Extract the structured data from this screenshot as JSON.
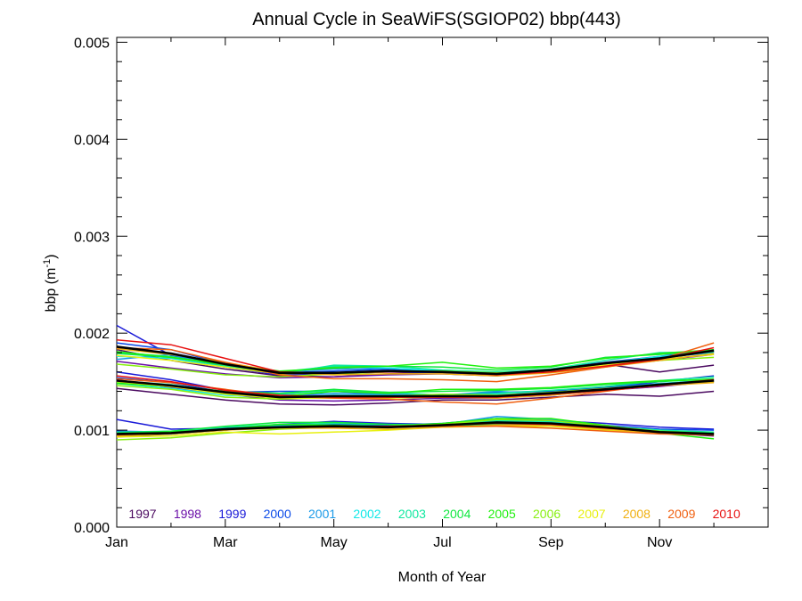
{
  "chart_data": {
    "type": "line",
    "title": "Annual Cycle in SeaWiFS(SGIOP02) bbp(443)",
    "xlabel": "Month of Year",
    "ylabel": "bbp (m",
    "ylabel_superscript": "-1",
    "ylabel_close": ")",
    "xlim": [
      1,
      13
    ],
    "ylim": [
      0.0,
      0.00505
    ],
    "xticks": [
      {
        "x": 1,
        "label": "Jan"
      },
      {
        "x": 3,
        "label": "Mar"
      },
      {
        "x": 5,
        "label": "May"
      },
      {
        "x": 7,
        "label": "Jul"
      },
      {
        "x": 9,
        "label": "Sep"
      },
      {
        "x": 11,
        "label": "Nov"
      }
    ],
    "yticks": [
      {
        "y": 0.0,
        "label": "0.000"
      },
      {
        "y": 0.001,
        "label": "0.001"
      },
      {
        "y": 0.002,
        "label": "0.002"
      },
      {
        "y": 0.003,
        "label": "0.003"
      },
      {
        "y": 0.004,
        "label": "0.004"
      },
      {
        "y": 0.005,
        "label": "0.005"
      }
    ],
    "legend_position": "bottom",
    "x": [
      1,
      2,
      3,
      4,
      5,
      6,
      7,
      8,
      9,
      10,
      11,
      12
    ],
    "series": [
      {
        "name": "1997",
        "color": "#4b0a60",
        "groups": [
          [
            0.00093,
            0.00096,
            0.001,
            0.00104,
            0.00105,
            0.00104,
            0.00106,
            0.00108,
            0.00106,
            0.00102,
            0.00097,
            0.00094
          ],
          [
            0.00143,
            0.00137,
            0.00131,
            0.00127,
            0.00126,
            0.00128,
            0.00131,
            0.00131,
            0.00134,
            0.00137,
            0.00135,
            0.0014
          ],
          [
            0.00183,
            0.00172,
            0.00163,
            0.00156,
            0.00155,
            0.00158,
            0.0016,
            0.00158,
            0.00162,
            0.00168,
            0.0016,
            0.00167
          ]
        ]
      },
      {
        "name": "1998",
        "color": "#6a0fa8",
        "groups": [
          [
            0.00095,
            0.00097,
            0.00102,
            0.00104,
            0.00105,
            0.00104,
            0.00106,
            0.00109,
            0.00108,
            0.00103,
            0.00099,
            0.00096
          ],
          [
            0.00152,
            0.00144,
            0.00137,
            0.00131,
            0.0013,
            0.00131,
            0.00133,
            0.00133,
            0.00136,
            0.00141,
            0.00145,
            0.0015
          ],
          [
            0.00171,
            0.00164,
            0.00158,
            0.00154,
            0.00155,
            0.00157,
            0.00158,
            0.00156,
            0.0016,
            0.00166,
            0.00172,
            0.00178
          ]
        ]
      },
      {
        "name": "1999",
        "color": "#1a1ad8",
        "groups": [
          [
            0.00111,
            0.00101,
            0.00102,
            0.00106,
            0.00109,
            0.00107,
            0.00106,
            0.00111,
            0.0011,
            0.00107,
            0.00103,
            0.00101
          ],
          [
            0.0016,
            0.00152,
            0.00141,
            0.00135,
            0.00136,
            0.00135,
            0.00134,
            0.00136,
            0.00139,
            0.00144,
            0.0015,
            0.00156
          ],
          [
            0.00208,
            0.00177,
            0.00165,
            0.00157,
            0.00158,
            0.0016,
            0.00159,
            0.00157,
            0.00161,
            0.00168,
            0.00174,
            0.00181
          ]
        ]
      },
      {
        "name": "2000",
        "color": "#0a4ae8",
        "groups": [
          [
            0.00099,
            0.00098,
            0.00101,
            0.00104,
            0.00106,
            0.00105,
            0.00107,
            0.00112,
            0.0011,
            0.00105,
            0.00101,
            0.001
          ],
          [
            0.00154,
            0.00149,
            0.00139,
            0.0014,
            0.0014,
            0.00137,
            0.00136,
            0.00139,
            0.0014,
            0.00145,
            0.00148,
            0.00151
          ],
          [
            0.0019,
            0.00183,
            0.00168,
            0.00159,
            0.00161,
            0.00163,
            0.00161,
            0.00158,
            0.00163,
            0.0017,
            0.00176,
            0.00183
          ]
        ]
      },
      {
        "name": "2001",
        "color": "#1a9ae8",
        "groups": [
          [
            0.00097,
            0.00098,
            0.00102,
            0.00105,
            0.00104,
            0.00104,
            0.00106,
            0.00114,
            0.00111,
            0.00104,
            0.00099,
            0.00097
          ],
          [
            0.0015,
            0.00146,
            0.00138,
            0.00136,
            0.00138,
            0.00137,
            0.00136,
            0.0014,
            0.00137,
            0.00142,
            0.00147,
            0.0015
          ],
          [
            0.00173,
            0.00178,
            0.00166,
            0.0016,
            0.00163,
            0.00164,
            0.0016,
            0.00158,
            0.00162,
            0.00169,
            0.00175,
            0.0018
          ]
        ]
      },
      {
        "name": "2002",
        "color": "#10e8e8",
        "groups": [
          [
            0.00096,
            0.00097,
            0.00101,
            0.00104,
            0.00103,
            0.00103,
            0.00105,
            0.00109,
            0.00108,
            0.00104,
            0.001,
            0.00097
          ],
          [
            0.00148,
            0.00143,
            0.00136,
            0.00134,
            0.00136,
            0.00136,
            0.00135,
            0.00137,
            0.00138,
            0.00143,
            0.00148,
            0.00152
          ],
          [
            0.00176,
            0.00174,
            0.00165,
            0.0016,
            0.00166,
            0.00164,
            0.00161,
            0.00159,
            0.00162,
            0.00169,
            0.00176,
            0.0018
          ]
        ]
      },
      {
        "name": "2003",
        "color": "#10e8a0",
        "groups": [
          [
            0.00098,
            0.00099,
            0.00103,
            0.00106,
            0.00107,
            0.00106,
            0.00106,
            0.0011,
            0.00109,
            0.00104,
            0.001,
            0.00098
          ],
          [
            0.00151,
            0.00147,
            0.00139,
            0.00137,
            0.00141,
            0.00139,
            0.00136,
            0.00138,
            0.00141,
            0.00145,
            0.00151,
            0.00155
          ],
          [
            0.0018,
            0.00176,
            0.00166,
            0.00158,
            0.00167,
            0.00166,
            0.00162,
            0.0016,
            0.00163,
            0.00172,
            0.0018,
            0.00181
          ]
        ]
      },
      {
        "name": "2004",
        "color": "#10e840",
        "groups": [
          [
            0.00097,
            0.00099,
            0.00104,
            0.00108,
            0.00108,
            0.00106,
            0.00104,
            0.00106,
            0.00106,
            0.00103,
            0.00099,
            0.00097
          ],
          [
            0.00149,
            0.00146,
            0.0014,
            0.00138,
            0.00142,
            0.00139,
            0.0014,
            0.00141,
            0.00143,
            0.00147,
            0.0015,
            0.00153
          ],
          [
            0.00179,
            0.00175,
            0.00167,
            0.0016,
            0.00165,
            0.00166,
            0.00165,
            0.00162,
            0.00165,
            0.00175,
            0.00178,
            0.00182
          ]
        ]
      },
      {
        "name": "2005",
        "color": "#20f010",
        "groups": [
          [
            0.00096,
            0.00098,
            0.00101,
            0.00106,
            0.00105,
            0.00104,
            0.00107,
            0.00112,
            0.00112,
            0.00105,
            0.00097,
            0.00091
          ],
          [
            0.00148,
            0.00145,
            0.00138,
            0.00135,
            0.0014,
            0.00138,
            0.00142,
            0.00142,
            0.00144,
            0.00148,
            0.00151,
            0.00152
          ],
          [
            0.00181,
            0.00175,
            0.00168,
            0.00161,
            0.00164,
            0.00166,
            0.0017,
            0.00164,
            0.00166,
            0.00174,
            0.00179,
            0.00183
          ]
        ]
      },
      {
        "name": "2006",
        "color": "#88f010",
        "groups": [
          [
            0.0009,
            0.00092,
            0.00097,
            0.00101,
            0.00103,
            0.00104,
            0.00106,
            0.00111,
            0.0011,
            0.00104,
            0.00099,
            0.00096
          ],
          [
            0.00146,
            0.00142,
            0.00134,
            0.00132,
            0.00134,
            0.00135,
            0.00137,
            0.00136,
            0.00139,
            0.00143,
            0.00147,
            0.0015
          ],
          [
            0.00168,
            0.00163,
            0.00157,
            0.00155,
            0.00158,
            0.0016,
            0.00161,
            0.00159,
            0.00161,
            0.00167,
            0.00172,
            0.00175
          ]
        ]
      },
      {
        "name": "2007",
        "color": "#e8f010",
        "groups": [
          [
            0.00093,
            0.00094,
            0.00098,
            0.00096,
            0.00098,
            0.001,
            0.00103,
            0.00104,
            0.00104,
            0.001,
            0.00097,
            0.00096
          ],
          [
            0.0015,
            0.00145,
            0.00137,
            0.00133,
            0.00133,
            0.00133,
            0.00134,
            0.00134,
            0.00137,
            0.00141,
            0.00146,
            0.0015
          ],
          [
            0.00177,
            0.00172,
            0.00165,
            0.00158,
            0.00159,
            0.0016,
            0.0016,
            0.00158,
            0.00161,
            0.00167,
            0.00173,
            0.00178
          ]
        ]
      },
      {
        "name": "2008",
        "color": "#f0b010",
        "groups": [
          [
            0.00094,
            0.00096,
            0.001,
            0.00102,
            0.00102,
            0.00101,
            0.00103,
            0.00105,
            0.00105,
            0.00101,
            0.00097,
            0.00095
          ],
          [
            0.00151,
            0.00146,
            0.00139,
            0.00134,
            0.00135,
            0.00134,
            0.00134,
            0.00133,
            0.00136,
            0.00141,
            0.00146,
            0.00149
          ],
          [
            0.00184,
            0.00178,
            0.0017,
            0.0016,
            0.00157,
            0.00158,
            0.00158,
            0.00156,
            0.00159,
            0.00165,
            0.00172,
            0.00179
          ]
        ]
      },
      {
        "name": "2009",
        "color": "#f06010",
        "groups": [
          [
            0.00095,
            0.00097,
            0.00101,
            0.00103,
            0.00103,
            0.00103,
            0.00104,
            0.00104,
            0.00102,
            0.00099,
            0.00096,
            0.00095
          ],
          [
            0.00153,
            0.00149,
            0.00142,
            0.00135,
            0.00133,
            0.00132,
            0.00129,
            0.00127,
            0.00133,
            0.0014,
            0.00147,
            0.00152
          ],
          [
            0.00185,
            0.00183,
            0.0017,
            0.00157,
            0.00153,
            0.00153,
            0.00152,
            0.0015,
            0.00157,
            0.00165,
            0.00173,
            0.0019
          ]
        ]
      },
      {
        "name": "2010",
        "color": "#e81010",
        "groups": [
          [
            0.00096,
            0.00097,
            0.00101,
            0.00103,
            0.00104,
            0.00104,
            0.00105,
            0.00107,
            0.00106,
            0.00102,
            0.00098,
            0.00096
          ],
          [
            0.00156,
            0.0015,
            0.00141,
            0.00136,
            0.00134,
            0.00134,
            0.00134,
            0.00134,
            0.00137,
            0.00141,
            0.00146,
            0.00152
          ],
          [
            0.00193,
            0.00188,
            0.00174,
            0.0016,
            0.00159,
            0.0016,
            0.0016,
            0.00157,
            0.0016,
            0.00166,
            0.00173,
            0.00185
          ]
        ]
      },
      {
        "name": "",
        "color": "#000000",
        "bold": true,
        "groups": [
          [
            0.00096,
            0.00097,
            0.00101,
            0.00103,
            0.00104,
            0.00103,
            0.00105,
            0.00108,
            0.00107,
            0.00103,
            0.00098,
            0.00096
          ],
          [
            0.00151,
            0.00146,
            0.00139,
            0.00134,
            0.00135,
            0.00135,
            0.00135,
            0.00135,
            0.00138,
            0.00142,
            0.00147,
            0.00151
          ],
          [
            0.00186,
            0.00179,
            0.00168,
            0.00159,
            0.00159,
            0.00161,
            0.0016,
            0.00158,
            0.00162,
            0.00169,
            0.00174,
            0.00182
          ]
        ]
      }
    ]
  }
}
